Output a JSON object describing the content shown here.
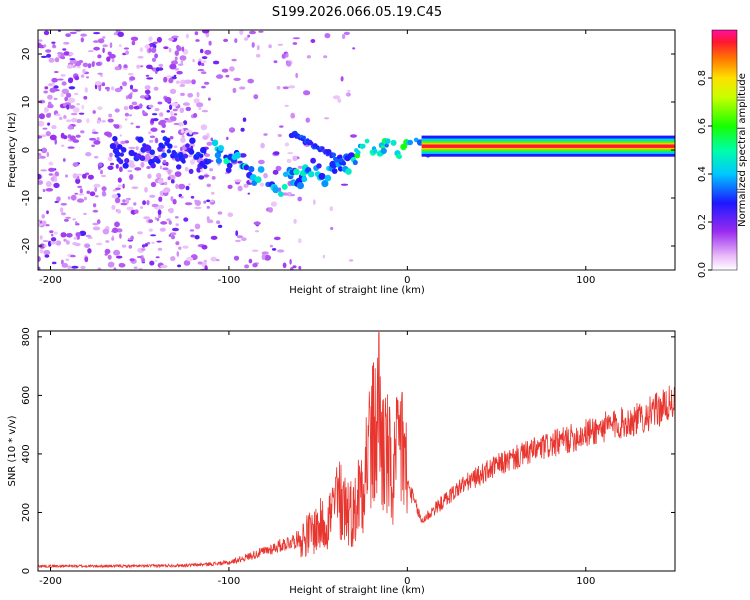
{
  "title": "S199.2026.066.05.19.C45",
  "chart_data": [
    {
      "type": "heatmap",
      "name": "spectrogram",
      "xlabel": "Height of straight line (km)",
      "ylabel": "Frequency (Hz)",
      "xlim": [
        -207,
        150
      ],
      "ylim": [
        -25,
        25
      ],
      "xticks": [
        -200,
        -100,
        0,
        100
      ],
      "yticks": [
        -20,
        -10,
        0,
        10,
        20
      ],
      "colorbar": {
        "label": "Normalized spectral amplitude",
        "range": [
          0,
          1
        ],
        "ticks": [
          0.0,
          0.2,
          0.4,
          0.6,
          0.8
        ]
      },
      "ridge": {
        "description_points": [
          {
            "x": -160,
            "y": -1
          },
          {
            "x": -130,
            "y": -0.5
          },
          {
            "x": -105,
            "y": -1
          },
          {
            "x": -90,
            "y": -3
          },
          {
            "x": -80,
            "y": -6
          },
          {
            "x": -70,
            "y": -8
          },
          {
            "x": -60,
            "y": -5
          },
          {
            "x": -50,
            "y": -4
          },
          {
            "x": -40,
            "y": -5
          },
          {
            "x": -30,
            "y": -1
          },
          {
            "x": -20,
            "y": 1
          },
          {
            "x": -10,
            "y": 0
          },
          {
            "x": 0,
            "y": 1
          },
          {
            "x": 10,
            "y": 0.8
          },
          {
            "x": 150,
            "y": 0.8
          }
        ]
      }
    },
    {
      "type": "line",
      "name": "snr",
      "xlabel": "Height of straight line (km)",
      "ylabel": "SNR (10 * v/v)",
      "xlim": [
        -207,
        150
      ],
      "ylim": [
        0,
        820
      ],
      "xticks": [
        -200,
        -100,
        0,
        100
      ],
      "yticks": [
        0,
        200,
        400,
        600,
        800
      ],
      "color": "#e8352e",
      "envelope": [
        {
          "x": -207,
          "y": 15
        },
        {
          "x": -150,
          "y": 15
        },
        {
          "x": -120,
          "y": 18
        },
        {
          "x": -100,
          "y": 25
        },
        {
          "x": -80,
          "y": 60
        },
        {
          "x": -60,
          "y": 100
        },
        {
          "x": -45,
          "y": 160
        },
        {
          "x": -38,
          "y": 230
        },
        {
          "x": -30,
          "y": 180
        },
        {
          "x": -22,
          "y": 380
        },
        {
          "x": -17,
          "y": 460
        },
        {
          "x": -12,
          "y": 380
        },
        {
          "x": -8,
          "y": 280
        },
        {
          "x": -4,
          "y": 420
        },
        {
          "x": 0,
          "y": 300
        },
        {
          "x": 8,
          "y": 170
        },
        {
          "x": 15,
          "y": 210
        },
        {
          "x": 30,
          "y": 290
        },
        {
          "x": 50,
          "y": 360
        },
        {
          "x": 70,
          "y": 410
        },
        {
          "x": 90,
          "y": 450
        },
        {
          "x": 110,
          "y": 490
        },
        {
          "x": 130,
          "y": 520
        },
        {
          "x": 150,
          "y": 580
        }
      ],
      "spikes": [
        {
          "x": -16,
          "y": 815
        },
        {
          "x": -3,
          "y": 610
        },
        {
          "x": -21,
          "y": 560
        },
        {
          "x": -40,
          "y": 320
        },
        {
          "x": -36,
          "y": 290
        },
        {
          "x": -10,
          "y": 560
        }
      ]
    }
  ]
}
